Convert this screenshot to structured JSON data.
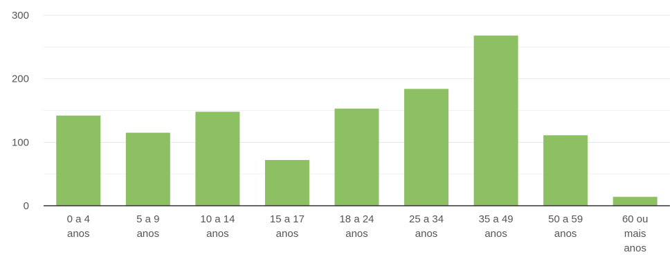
{
  "chart_data": {
    "type": "bar",
    "categories": [
      [
        "0 a 4",
        "anos"
      ],
      [
        "5 a 9",
        "anos"
      ],
      [
        "10 a 14",
        "anos"
      ],
      [
        "15 a 17",
        "anos"
      ],
      [
        "18 a 24",
        "anos"
      ],
      [
        "25 a 34",
        "anos"
      ],
      [
        "35 a 49",
        "anos"
      ],
      [
        "50 a 59",
        "anos"
      ],
      [
        "60 ou",
        "mais",
        "anos"
      ]
    ],
    "values": [
      142,
      115,
      148,
      72,
      153,
      184,
      268,
      111,
      14
    ],
    "title": "",
    "xlabel": "",
    "ylabel": "",
    "ylim": [
      0,
      300
    ],
    "yticks": [
      0,
      100,
      200,
      300
    ],
    "grid": true,
    "bar_color": "#8dc063",
    "gridline_color": "#e6e6e6",
    "axis_color": "#333333"
  }
}
